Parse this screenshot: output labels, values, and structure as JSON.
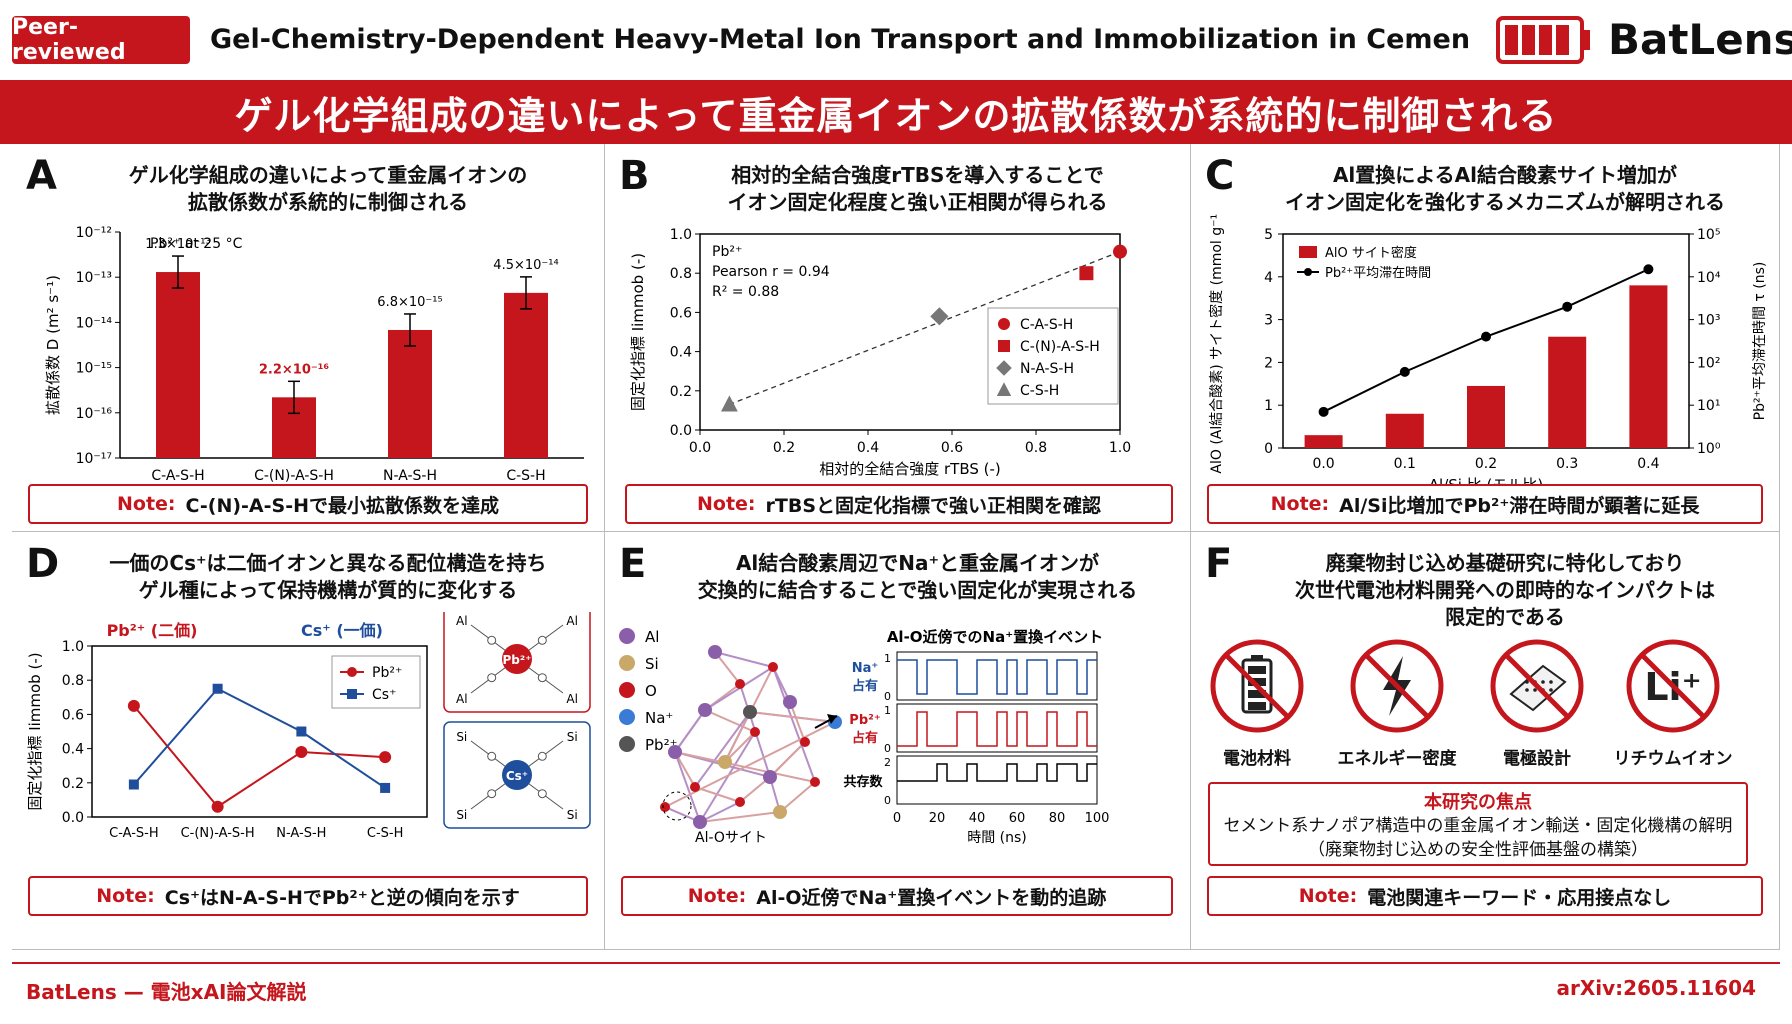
{
  "header": {
    "badge": "Peer-reviewed",
    "title": "Gel-Chemistry-Dependent Heavy-Metal Ion Transport and Immobilization in Cementitious Nanop",
    "logo": "BatLens",
    "logo_icon": "battery-icon",
    "banner": "ゲル化学組成の違いによって重金属イオンの拡散係数が系統的に制御される"
  },
  "colors": {
    "accent": "#c4161c",
    "blue": "#1f4e9c",
    "gray": "#777777"
  },
  "panels": {
    "A": {
      "letter": "A",
      "title1": "ゲル化学組成の違いによって重金属イオンの",
      "title2": "拡散係数が系統的に制御される",
      "note_label": "Note:",
      "note": "C-(N)-A-S-Hで最小拡散係数を達成"
    },
    "B": {
      "letter": "B",
      "title1": "相対的全結合強度rTBSを導入することで",
      "title2": "イオン固定化程度と強い正相関が得られる",
      "note_label": "Note:",
      "note": "rTBSと固定化指標で強い正相関を確認"
    },
    "C": {
      "letter": "C",
      "title1": "Al置換によるAl結合酸素サイト増加が",
      "title2": "イオン固定化を強化するメカニズムが解明される",
      "note_label": "Note:",
      "note": "Al/Si比増加でPb²⁺滞在時間が顕著に延長"
    },
    "D": {
      "letter": "D",
      "title1": "一価のCs⁺は二価イオンと異なる配位構造を持ち",
      "title2": "ゲル種によって保持機構が質的に変化する",
      "note_label": "Note:",
      "note": "Cs⁺はN-A-S-HでPb²⁺と逆の傾向を示す",
      "label_pb": "Pb²⁺ (二価)",
      "label_cs": "Cs⁺ (一価)"
    },
    "E": {
      "letter": "E",
      "title1": "Al結合酸素周辺でNa⁺と重金属イオンが",
      "title2": "交換的に結合することで強い固定化が実現される",
      "note_label": "Note:",
      "note": "Al-O近傍でNa⁺置換イベントを動的追跡",
      "legend": [
        "Al",
        "Si",
        "O",
        "Na⁺",
        "Pb²⁺"
      ],
      "site_label": "Al-Oサイト",
      "trace_title": "Al-O近傍でのNa⁺置換イベント",
      "trace_labels": [
        "Na⁺",
        "占有",
        "Pb²⁺",
        "占有",
        "共存数"
      ],
      "xlabel": "時間 (ns)",
      "xticks": [
        "0",
        "20",
        "40",
        "60",
        "80",
        "100"
      ]
    },
    "F": {
      "letter": "F",
      "title1": "廃棄物封じ込め基礎研究に特化しており",
      "title2": "次世代電池材料開発への即時的なインパクトは",
      "title3": "限定的である",
      "icons": [
        "電池材料",
        "エネルギー密度",
        "電極設計",
        "リチウムイオン"
      ],
      "icon_names": [
        "battery-icon",
        "lightning-icon",
        "electrode-icon",
        "lithium-icon"
      ],
      "li_symbol": "Li⁺",
      "focus_title": "本研究の焦点",
      "focus_line1": "セメント系ナノポア構造中の重金属イオン輸送・固定化機構の解明",
      "focus_line2": "（廃棄物封じ込めの安全性評価基盤の構築）",
      "note_label": "Note:",
      "note": "電池関連キーワード・応用接点なし"
    }
  },
  "chart_data": [
    {
      "id": "A",
      "type": "bar",
      "annotation": "Pb²⁺ at 25 °C",
      "categories": [
        "C-A-S-H",
        "C-(N)-A-S-H",
        "N-A-S-H",
        "C-S-H"
      ],
      "values": [
        1.3e-13,
        2.2e-16,
        6.8e-15,
        4.5e-14
      ],
      "value_labels": [
        "1.3×10⁻¹³",
        "2.2×10⁻¹⁶",
        "6.8×10⁻¹⁵",
        "4.5×10⁻¹⁴"
      ],
      "ylabel": "拡散係数 D (m² s⁻¹)",
      "yscale": "log",
      "ylim": [
        1e-17,
        1e-12
      ],
      "yticks": [
        "10⁻¹²",
        "10⁻¹³",
        "10⁻¹⁴",
        "10⁻¹⁵",
        "10⁻¹⁶",
        "10⁻¹⁷"
      ]
    },
    {
      "id": "B",
      "type": "scatter",
      "annotation": [
        "Pb²⁺",
        "Pearson r = 0.94",
        "R² = 0.88"
      ],
      "xlabel": "相対的全結合強度 rTBS (-)",
      "ylabel": "固定化指標 Iimmob (-)",
      "xlim": [
        0,
        1
      ],
      "ylim": [
        0,
        1
      ],
      "xticks": [
        "0.0",
        "0.2",
        "0.4",
        "0.6",
        "0.8",
        "1.0"
      ],
      "yticks": [
        "0.0",
        "0.2",
        "0.4",
        "0.6",
        "0.8",
        "1.0"
      ],
      "series": [
        {
          "name": "C-A-S-H",
          "x": 1.0,
          "y": 0.91
        },
        {
          "name": "C-(N)-A-S-H",
          "x": 0.92,
          "y": 0.8
        },
        {
          "name": "N-A-S-H",
          "x": 0.57,
          "y": 0.58
        },
        {
          "name": "C-S-H",
          "x": 0.07,
          "y": 0.13
        }
      ]
    },
    {
      "id": "C",
      "type": "bar",
      "x": [
        "0.0",
        "0.1",
        "0.2",
        "0.3",
        "0.4"
      ],
      "xlabel": "Al/Si 比 (モル比)",
      "ylabel": "AlO (Al結合酸素) サイト密度 (mmol g⁻¹)",
      "y2label": "Pb²⁺平均滞在時間 τ (ns)",
      "series": [
        {
          "name": "AlO サイト密度",
          "values": [
            0.3,
            0.8,
            1.45,
            2.6,
            3.8
          ]
        },
        {
          "name": "Pb²⁺平均滞在時間",
          "values": [
            7,
            60,
            400,
            2000,
            15000
          ]
        }
      ],
      "ylim": [
        0,
        5
      ],
      "y2lim": [
        1,
        100000
      ],
      "yticks": [
        "0",
        "1",
        "2",
        "3",
        "4",
        "5"
      ],
      "y2ticks": [
        "10⁰",
        "10¹",
        "10²",
        "10³",
        "10⁴",
        "10⁵"
      ]
    },
    {
      "id": "D",
      "type": "line",
      "categories": [
        "C-A-S-H",
        "C-(N)-A-S-H",
        "N-A-S-H",
        "C-S-H"
      ],
      "ylabel": "固定化指標 Iimmob (-)",
      "ylim": [
        0,
        1
      ],
      "yticks": [
        "0.0",
        "0.2",
        "0.4",
        "0.6",
        "0.8",
        "1.0"
      ],
      "series": [
        {
          "name": "Pb²⁺",
          "values": [
            0.65,
            0.06,
            0.38,
            0.35
          ]
        },
        {
          "name": "Cs⁺",
          "values": [
            0.19,
            0.75,
            0.5,
            0.17
          ]
        }
      ]
    }
  ],
  "footer": {
    "left": "BatLens — 電池xAI論文解説",
    "right": "arXiv:2605.11604"
  }
}
